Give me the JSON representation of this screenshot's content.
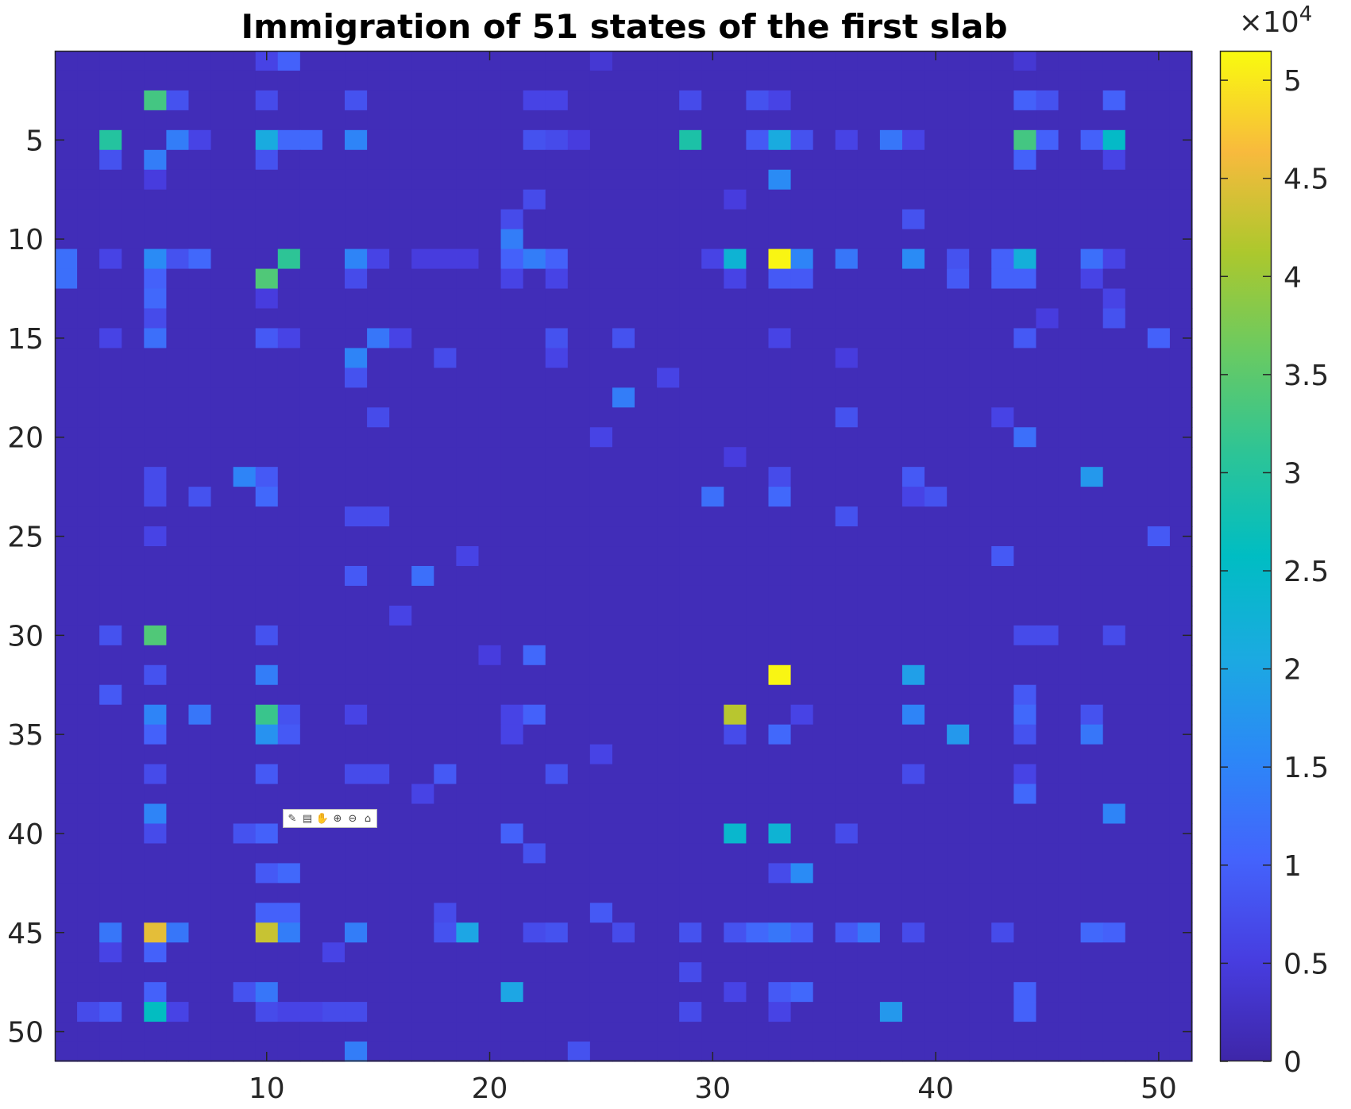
{
  "chart_data": {
    "type": "heatmap",
    "title": "Immigration of 51 states of the first slab",
    "xlabel": "",
    "ylabel": "",
    "nrows": 51,
    "ncols": 51,
    "x_ticks": [
      10,
      20,
      30,
      40,
      50
    ],
    "y_ticks": [
      5,
      10,
      15,
      20,
      25,
      30,
      35,
      40,
      45,
      50
    ],
    "y_direction": "reverse",
    "colormap": "parula",
    "clim": [
      0,
      51500
    ],
    "colorbar": {
      "ticks": [
        0,
        0.5,
        1,
        1.5,
        2,
        2.5,
        3,
        3.5,
        4,
        4.5,
        5
      ],
      "tick_labels": [
        "0",
        "0.5",
        "1",
        "1.5",
        "2",
        "2.5",
        "3",
        "3.5",
        "4",
        "4.5",
        "5"
      ],
      "exponent_label": "×10",
      "exponent": "4",
      "placement": "right"
    },
    "baseline_value": 1500,
    "cells": [
      [
        1,
        10,
        6000
      ],
      [
        1,
        11,
        10000
      ],
      [
        1,
        25,
        4000
      ],
      [
        1,
        44,
        4000
      ],
      [
        3,
        5,
        33000
      ],
      [
        3,
        6,
        8000
      ],
      [
        3,
        10,
        7000
      ],
      [
        3,
        14,
        8000
      ],
      [
        3,
        22,
        6000
      ],
      [
        3,
        23,
        6000
      ],
      [
        3,
        29,
        7000
      ],
      [
        3,
        32,
        8000
      ],
      [
        3,
        33,
        6000
      ],
      [
        3,
        44,
        10000
      ],
      [
        3,
        45,
        8000
      ],
      [
        3,
        48,
        10000
      ],
      [
        5,
        3,
        30000
      ],
      [
        5,
        6,
        14000
      ],
      [
        5,
        7,
        6000
      ],
      [
        5,
        10,
        21000
      ],
      [
        5,
        11,
        11000
      ],
      [
        5,
        12,
        11000
      ],
      [
        5,
        14,
        15000
      ],
      [
        5,
        22,
        8000
      ],
      [
        5,
        23,
        7000
      ],
      [
        5,
        24,
        5000
      ],
      [
        5,
        29,
        29000
      ],
      [
        5,
        32,
        9000
      ],
      [
        5,
        33,
        21000
      ],
      [
        5,
        34,
        8000
      ],
      [
        5,
        36,
        6000
      ],
      [
        5,
        38,
        13000
      ],
      [
        5,
        39,
        6000
      ],
      [
        5,
        44,
        33000
      ],
      [
        5,
        45,
        10000
      ],
      [
        5,
        47,
        10000
      ],
      [
        5,
        48,
        25000
      ],
      [
        6,
        3,
        8000
      ],
      [
        6,
        5,
        14000
      ],
      [
        6,
        10,
        8000
      ],
      [
        6,
        44,
        10000
      ],
      [
        6,
        48,
        6000
      ],
      [
        7,
        33,
        16000
      ],
      [
        7,
        5,
        5000
      ],
      [
        8,
        22,
        7000
      ],
      [
        8,
        31,
        5000
      ],
      [
        9,
        39,
        8000
      ],
      [
        9,
        21,
        7000
      ],
      [
        10,
        21,
        14000
      ],
      [
        11,
        1,
        12000
      ],
      [
        11,
        3,
        6000
      ],
      [
        11,
        5,
        16000
      ],
      [
        11,
        6,
        8000
      ],
      [
        11,
        7,
        11000
      ],
      [
        11,
        11,
        31000
      ],
      [
        11,
        14,
        15000
      ],
      [
        11,
        15,
        6000
      ],
      [
        11,
        17,
        5000
      ],
      [
        11,
        18,
        5000
      ],
      [
        11,
        19,
        5000
      ],
      [
        11,
        21,
        10000
      ],
      [
        11,
        22,
        14000
      ],
      [
        11,
        23,
        10000
      ],
      [
        11,
        30,
        6000
      ],
      [
        11,
        31,
        23000
      ],
      [
        11,
        33,
        51000
      ],
      [
        11,
        34,
        15000
      ],
      [
        11,
        36,
        13000
      ],
      [
        11,
        39,
        16000
      ],
      [
        11,
        41,
        8000
      ],
      [
        11,
        43,
        10000
      ],
      [
        11,
        44,
        22000
      ],
      [
        11,
        47,
        12000
      ],
      [
        11,
        48,
        6000
      ],
      [
        12,
        1,
        12000
      ],
      [
        12,
        5,
        10000
      ],
      [
        12,
        10,
        34000
      ],
      [
        12,
        14,
        7000
      ],
      [
        12,
        21,
        6000
      ],
      [
        12,
        23,
        6000
      ],
      [
        12,
        31,
        6000
      ],
      [
        12,
        33,
        9000
      ],
      [
        12,
        34,
        9000
      ],
      [
        12,
        41,
        9000
      ],
      [
        12,
        43,
        10000
      ],
      [
        12,
        44,
        10000
      ],
      [
        12,
        47,
        6000
      ],
      [
        13,
        5,
        11000
      ],
      [
        13,
        10,
        5000
      ],
      [
        13,
        48,
        6000
      ],
      [
        14,
        5,
        7000
      ],
      [
        14,
        45,
        5000
      ],
      [
        14,
        48,
        8000
      ],
      [
        15,
        3,
        6000
      ],
      [
        15,
        5,
        12000
      ],
      [
        15,
        10,
        9000
      ],
      [
        15,
        11,
        6000
      ],
      [
        15,
        15,
        13000
      ],
      [
        15,
        16,
        6000
      ],
      [
        15,
        23,
        8000
      ],
      [
        15,
        26,
        8000
      ],
      [
        15,
        33,
        6000
      ],
      [
        15,
        44,
        9000
      ],
      [
        15,
        50,
        10000
      ],
      [
        16,
        14,
        15000
      ],
      [
        16,
        18,
        7000
      ],
      [
        16,
        23,
        6000
      ],
      [
        16,
        36,
        5000
      ],
      [
        17,
        14,
        8000
      ],
      [
        17,
        28,
        6000
      ],
      [
        18,
        26,
        14000
      ],
      [
        19,
        15,
        7000
      ],
      [
        19,
        36,
        8000
      ],
      [
        19,
        43,
        6000
      ],
      [
        20,
        25,
        6000
      ],
      [
        20,
        44,
        12000
      ],
      [
        21,
        31,
        5000
      ],
      [
        22,
        9,
        15000
      ],
      [
        22,
        5,
        7000
      ],
      [
        22,
        10,
        9000
      ],
      [
        22,
        33,
        7000
      ],
      [
        22,
        39,
        9000
      ],
      [
        22,
        47,
        18000
      ],
      [
        23,
        5,
        7000
      ],
      [
        23,
        7,
        8000
      ],
      [
        23,
        10,
        11000
      ],
      [
        23,
        30,
        12000
      ],
      [
        23,
        33,
        11000
      ],
      [
        23,
        39,
        6000
      ],
      [
        23,
        40,
        8000
      ],
      [
        24,
        14,
        7000
      ],
      [
        24,
        15,
        7000
      ],
      [
        24,
        36,
        8000
      ],
      [
        25,
        5,
        6000
      ],
      [
        25,
        50,
        9000
      ],
      [
        26,
        19,
        6000
      ],
      [
        26,
        43,
        9000
      ],
      [
        27,
        14,
        9000
      ],
      [
        27,
        17,
        12000
      ],
      [
        29,
        16,
        6000
      ],
      [
        30,
        3,
        8000
      ],
      [
        30,
        5,
        34000
      ],
      [
        30,
        10,
        8000
      ],
      [
        30,
        44,
        7000
      ],
      [
        30,
        45,
        7000
      ],
      [
        30,
        48,
        7000
      ],
      [
        31,
        20,
        5000
      ],
      [
        31,
        22,
        11000
      ],
      [
        32,
        5,
        8000
      ],
      [
        32,
        10,
        14000
      ],
      [
        32,
        33,
        51000
      ],
      [
        32,
        39,
        19000
      ],
      [
        33,
        3,
        9000
      ],
      [
        33,
        44,
        9000
      ],
      [
        34,
        5,
        15000
      ],
      [
        34,
        7,
        13000
      ],
      [
        34,
        10,
        32000
      ],
      [
        34,
        11,
        8000
      ],
      [
        34,
        14,
        6000
      ],
      [
        34,
        21,
        6000
      ],
      [
        34,
        22,
        10000
      ],
      [
        34,
        31,
        42000
      ],
      [
        34,
        34,
        6000
      ],
      [
        34,
        39,
        15000
      ],
      [
        34,
        44,
        11000
      ],
      [
        34,
        47,
        8000
      ],
      [
        35,
        5,
        10000
      ],
      [
        35,
        10,
        17000
      ],
      [
        35,
        11,
        9000
      ],
      [
        35,
        21,
        6000
      ],
      [
        35,
        31,
        7000
      ],
      [
        35,
        33,
        11000
      ],
      [
        35,
        41,
        18000
      ],
      [
        35,
        44,
        8000
      ],
      [
        35,
        47,
        13000
      ],
      [
        36,
        25,
        6000
      ],
      [
        37,
        5,
        7000
      ],
      [
        37,
        10,
        9000
      ],
      [
        37,
        14,
        7000
      ],
      [
        37,
        15,
        7000
      ],
      [
        37,
        18,
        9000
      ],
      [
        37,
        23,
        8000
      ],
      [
        37,
        39,
        7000
      ],
      [
        37,
        44,
        6000
      ],
      [
        38,
        17,
        6000
      ],
      [
        38,
        44,
        11000
      ],
      [
        39,
        5,
        15000
      ],
      [
        39,
        48,
        15000
      ],
      [
        40,
        5,
        7000
      ],
      [
        40,
        9,
        8000
      ],
      [
        40,
        10,
        10000
      ],
      [
        40,
        21,
        10000
      ],
      [
        40,
        31,
        24000
      ],
      [
        40,
        33,
        23000
      ],
      [
        40,
        36,
        7000
      ],
      [
        41,
        22,
        8000
      ],
      [
        42,
        10,
        9000
      ],
      [
        42,
        11,
        11000
      ],
      [
        42,
        34,
        16000
      ],
      [
        42,
        33,
        7000
      ],
      [
        44,
        25,
        9000
      ],
      [
        44,
        10,
        10000
      ],
      [
        44,
        11,
        10000
      ],
      [
        44,
        18,
        7000
      ],
      [
        45,
        3,
        13000
      ],
      [
        45,
        5,
        45000
      ],
      [
        45,
        6,
        13000
      ],
      [
        45,
        10,
        43000
      ],
      [
        45,
        11,
        14000
      ],
      [
        45,
        14,
        14000
      ],
      [
        45,
        18,
        8000
      ],
      [
        45,
        19,
        20000
      ],
      [
        45,
        22,
        7000
      ],
      [
        45,
        23,
        8000
      ],
      [
        45,
        26,
        7000
      ],
      [
        45,
        29,
        8000
      ],
      [
        45,
        31,
        8000
      ],
      [
        45,
        32,
        11000
      ],
      [
        45,
        33,
        13000
      ],
      [
        45,
        34,
        10000
      ],
      [
        45,
        36,
        9000
      ],
      [
        45,
        37,
        13000
      ],
      [
        45,
        39,
        7000
      ],
      [
        45,
        43,
        7000
      ],
      [
        45,
        47,
        11000
      ],
      [
        45,
        48,
        10000
      ],
      [
        46,
        3,
        6000
      ],
      [
        46,
        5,
        10000
      ],
      [
        46,
        13,
        6000
      ],
      [
        47,
        29,
        7000
      ],
      [
        48,
        5,
        10000
      ],
      [
        48,
        9,
        8000
      ],
      [
        48,
        10,
        13000
      ],
      [
        48,
        21,
        20000
      ],
      [
        48,
        31,
        6000
      ],
      [
        48,
        33,
        9000
      ],
      [
        48,
        34,
        11000
      ],
      [
        48,
        44,
        10000
      ],
      [
        49,
        2,
        7000
      ],
      [
        49,
        3,
        9000
      ],
      [
        49,
        5,
        26000
      ],
      [
        49,
        6,
        6000
      ],
      [
        49,
        10,
        7000
      ],
      [
        49,
        11,
        6000
      ],
      [
        49,
        12,
        6000
      ],
      [
        49,
        13,
        7000
      ],
      [
        49,
        14,
        7000
      ],
      [
        49,
        29,
        7000
      ],
      [
        49,
        33,
        6000
      ],
      [
        49,
        38,
        18000
      ],
      [
        49,
        44,
        10000
      ],
      [
        51,
        14,
        14000
      ],
      [
        51,
        24,
        8000
      ]
    ]
  },
  "axes_toolbar": {
    "icons": [
      "brush-icon",
      "data-tips-icon",
      "pan-hand-icon",
      "zoom-in-icon",
      "zoom-out-icon",
      "home-icon"
    ]
  }
}
